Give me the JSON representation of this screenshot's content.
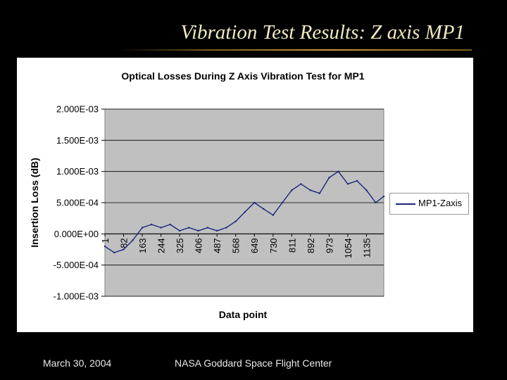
{
  "slide": {
    "title": "Vibration Test Results: Z axis MP1",
    "footer_date": "March 30, 2004",
    "footer_org": "NASA Goddard Space Flight Center"
  },
  "colors": {
    "background": "#000000",
    "plot_area": "#c0c0c0",
    "series": "#1a237e",
    "title_text": "#f2e9c0"
  },
  "chart_data": {
    "type": "line",
    "title": "Optical Losses During Z Axis Vibration Test for MP1",
    "xlabel": "Data point",
    "ylabel": "Insertion Loss (dB)",
    "ylim": [
      -0.001,
      0.002
    ],
    "yticks": [
      -0.001,
      -0.0005,
      0,
      0.0005,
      0.001,
      0.0015,
      0.002
    ],
    "ytick_labels": [
      "-1.000E-03",
      "-5.000E-04",
      "0.000E+00",
      "5.000E-04",
      "1.000E-03",
      "1.500E-03",
      "2.000E-03"
    ],
    "x_range": [
      1,
      1210
    ],
    "xtick_labels": [
      "1",
      "82",
      "163",
      "244",
      "325",
      "406",
      "487",
      "568",
      "649",
      "730",
      "811",
      "892",
      "973",
      "1054",
      "1135"
    ],
    "xtick_values": [
      1,
      82,
      163,
      244,
      325,
      406,
      487,
      568,
      649,
      730,
      811,
      892,
      973,
      1054,
      1135
    ],
    "grid": "horizontal",
    "legend_position": "right",
    "series": [
      {
        "name": "MP1-Zaxis",
        "x": [
          1,
          41,
          82,
          122,
          163,
          203,
          244,
          284,
          325,
          365,
          406,
          446,
          487,
          527,
          568,
          608,
          649,
          689,
          730,
          770,
          811,
          851,
          892,
          932,
          973,
          1013,
          1054,
          1094,
          1135,
          1175,
          1210
        ],
        "y": [
          -0.0002,
          -0.0003,
          -0.00025,
          -0.0001,
          0.0001,
          0.00015,
          0.0001,
          0.00015,
          5e-05,
          0.0001,
          5e-05,
          0.0001,
          5e-05,
          0.0001,
          0.0002,
          0.00035,
          0.0005,
          0.0004,
          0.0003,
          0.0005,
          0.0007,
          0.0008,
          0.0007,
          0.00065,
          0.0009,
          0.001,
          0.0008,
          0.00085,
          0.0007,
          0.0005,
          0.0006
        ]
      }
    ]
  }
}
